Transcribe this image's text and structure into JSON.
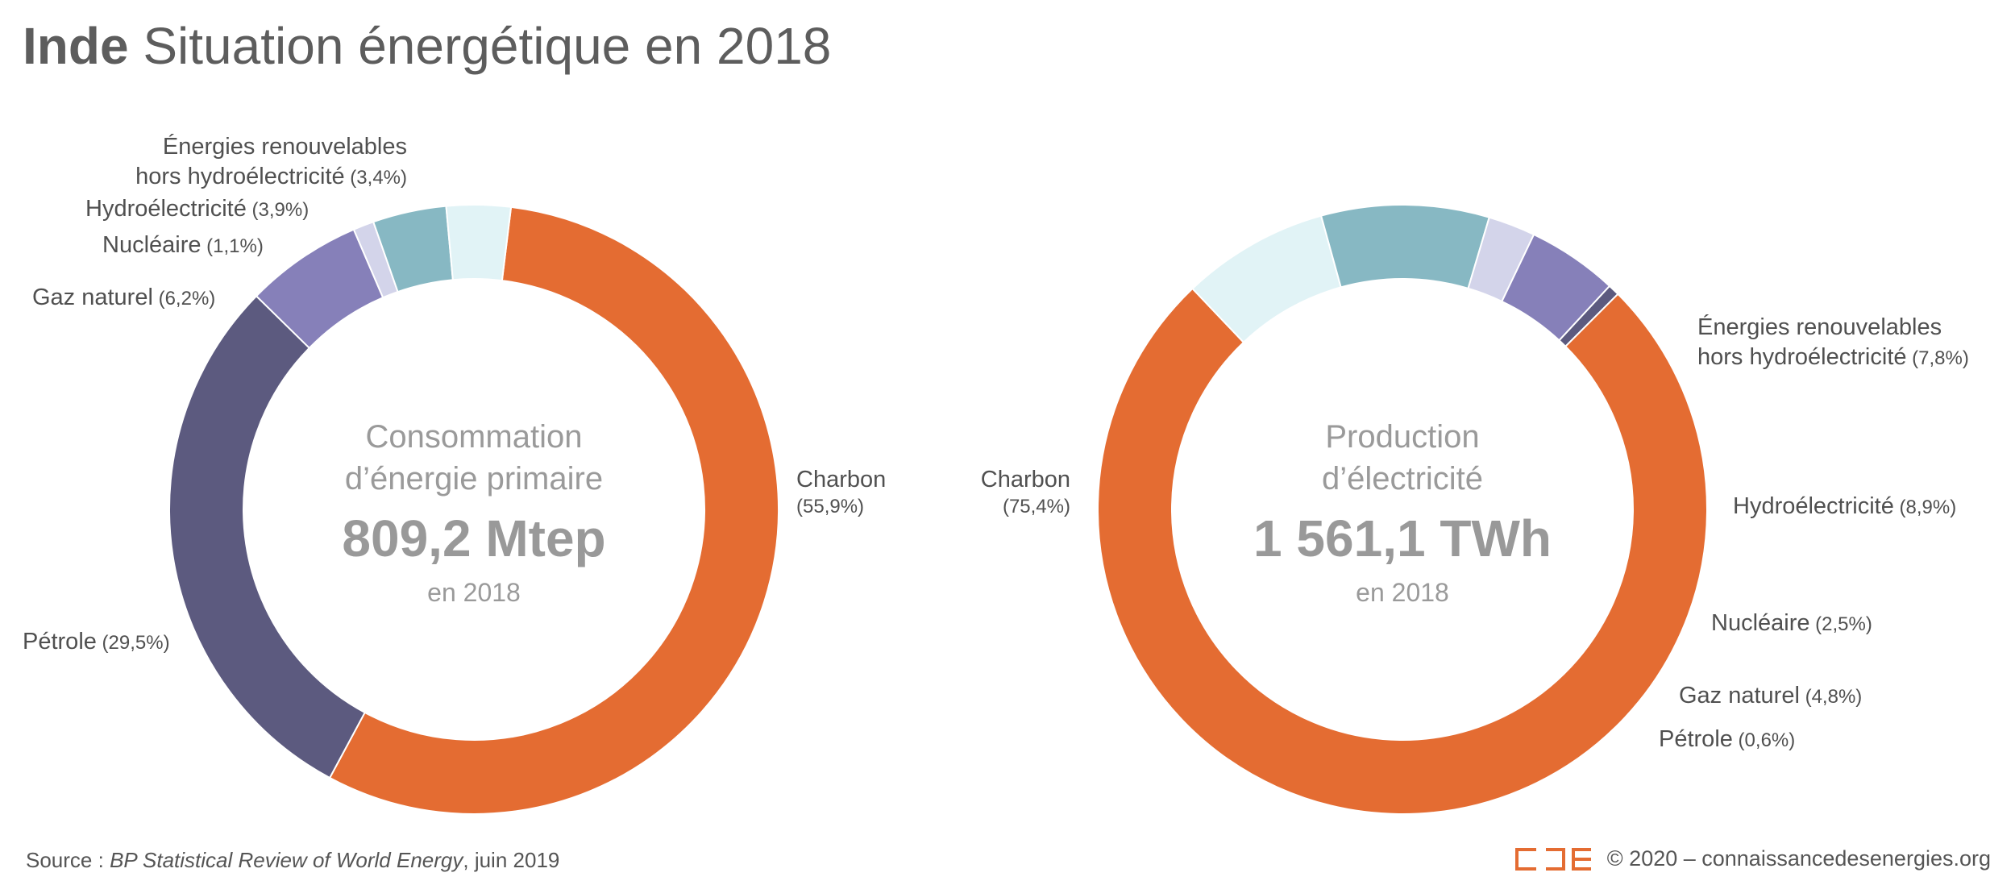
{
  "title": {
    "country": "Inde",
    "text": "Situation énergétique en 2018"
  },
  "charts": [
    {
      "center": {
        "line1": "Consommation",
        "line2": "d’énergie primaire",
        "value": "809,2 Mtep",
        "year": "en 2018"
      }
    },
    {
      "center": {
        "line1": "Production",
        "line2": "d’électricité",
        "value": "1 561,1 TWh",
        "year": "en 2018"
      }
    }
  ],
  "chart_data": [
    {
      "type": "pie",
      "title": "Consommation d’énergie primaire",
      "total": "809,2 Mtep",
      "slices": [
        {
          "name": "Charbon",
          "value": 55.9,
          "label_pct": "(55,9%)",
          "color": "#e46c32"
        },
        {
          "name": "Pétrole",
          "value": 29.5,
          "label_pct": "(29,5%)",
          "color": "#5c5a7f"
        },
        {
          "name": "Gaz naturel",
          "value": 6.2,
          "label_pct": "(6,2%)",
          "color": "#8680b9"
        },
        {
          "name": "Nucléaire",
          "value": 1.1,
          "label_pct": "(1,1%)",
          "color": "#d3d4ea"
        },
        {
          "name": "Hydroélectricité",
          "value": 3.9,
          "label_pct": "(3,9%)",
          "color": "#87b8c3"
        },
        {
          "name": "Énergies renouvelables hors hydroélectricité",
          "label_lines": [
            "Énergies renouvelables",
            "hors hydroélectricité"
          ],
          "value": 3.4,
          "label_pct": "(3,4%)",
          "color": "#e1f3f6"
        }
      ]
    },
    {
      "type": "pie",
      "title": "Production d’électricité",
      "total": "1 561,1 TWh",
      "slices": [
        {
          "name": "Charbon",
          "value": 75.4,
          "label_pct": "(75,4%)",
          "color": "#e46c32"
        },
        {
          "name": "Énergies renouvelables hors hydroélectricité",
          "label_lines": [
            "Énergies renouvelables",
            "hors hydroélectricité"
          ],
          "value": 7.8,
          "label_pct": "(7,8%)",
          "color": "#e1f3f6"
        },
        {
          "name": "Hydroélectricité",
          "value": 8.9,
          "label_pct": "(8,9%)",
          "color": "#87b8c3"
        },
        {
          "name": "Nucléaire",
          "value": 2.5,
          "label_pct": "(2,5%)",
          "color": "#d3d4ea"
        },
        {
          "name": "Gaz naturel",
          "value": 4.8,
          "label_pct": "(4,8%)",
          "color": "#8680b9"
        },
        {
          "name": "Pétrole",
          "value": 0.6,
          "label_pct": "(0,6%)",
          "color": "#5c5a7f"
        }
      ]
    }
  ],
  "footer": {
    "source_prefix": "Source : ",
    "source_publication": "BP Statistical Review of World Energy",
    "source_suffix": ", juin 2019",
    "logo_color": "#e46c32",
    "copyright": "© 2020 – connaissancedesenergies.org"
  }
}
